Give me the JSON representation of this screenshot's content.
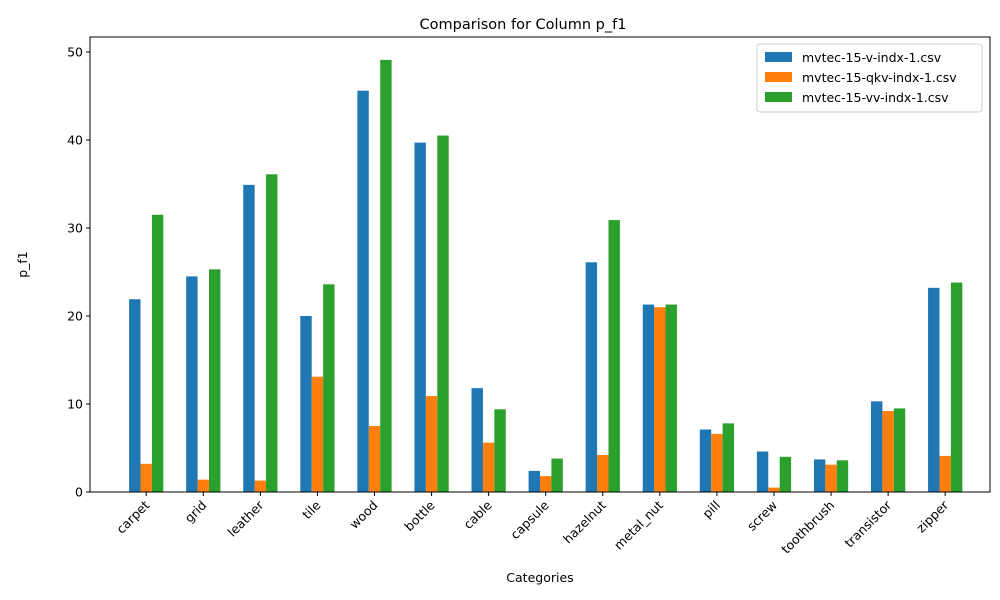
{
  "chart_data": {
    "type": "bar",
    "title": "Comparison for Column p_f1",
    "xlabel": "Categories",
    "ylabel": "p_f1",
    "ylim": [
      0,
      51.7
    ],
    "yticks": [
      0,
      10,
      20,
      30,
      40,
      50
    ],
    "grid": false,
    "legend_position": "top-right",
    "categories": [
      "carpet",
      "grid",
      "leather",
      "tile",
      "wood",
      "bottle",
      "cable",
      "capsule",
      "hazelnut",
      "metal_nut",
      "pill",
      "screw",
      "toothbrush",
      "transistor",
      "zipper"
    ],
    "series": [
      {
        "name": "mvtec-15-v-indx-1.csv",
        "color": "#1f77b4",
        "values": [
          21.9,
          24.5,
          34.9,
          20.0,
          45.6,
          39.7,
          11.8,
          2.4,
          26.1,
          21.3,
          7.1,
          4.6,
          3.7,
          10.3,
          23.2
        ]
      },
      {
        "name": "mvtec-15-qkv-indx-1.csv",
        "color": "#ff7f0e",
        "values": [
          3.2,
          1.4,
          1.3,
          13.1,
          7.5,
          10.9,
          5.6,
          1.8,
          4.2,
          21.0,
          6.6,
          0.5,
          3.1,
          9.2,
          4.1
        ]
      },
      {
        "name": "mvtec-15-vv-indx-1.csv",
        "color": "#2ca02c",
        "values": [
          31.5,
          25.3,
          36.1,
          23.6,
          49.1,
          40.5,
          9.4,
          3.8,
          30.9,
          21.3,
          7.8,
          4.0,
          3.6,
          9.5,
          23.8
        ]
      }
    ]
  }
}
